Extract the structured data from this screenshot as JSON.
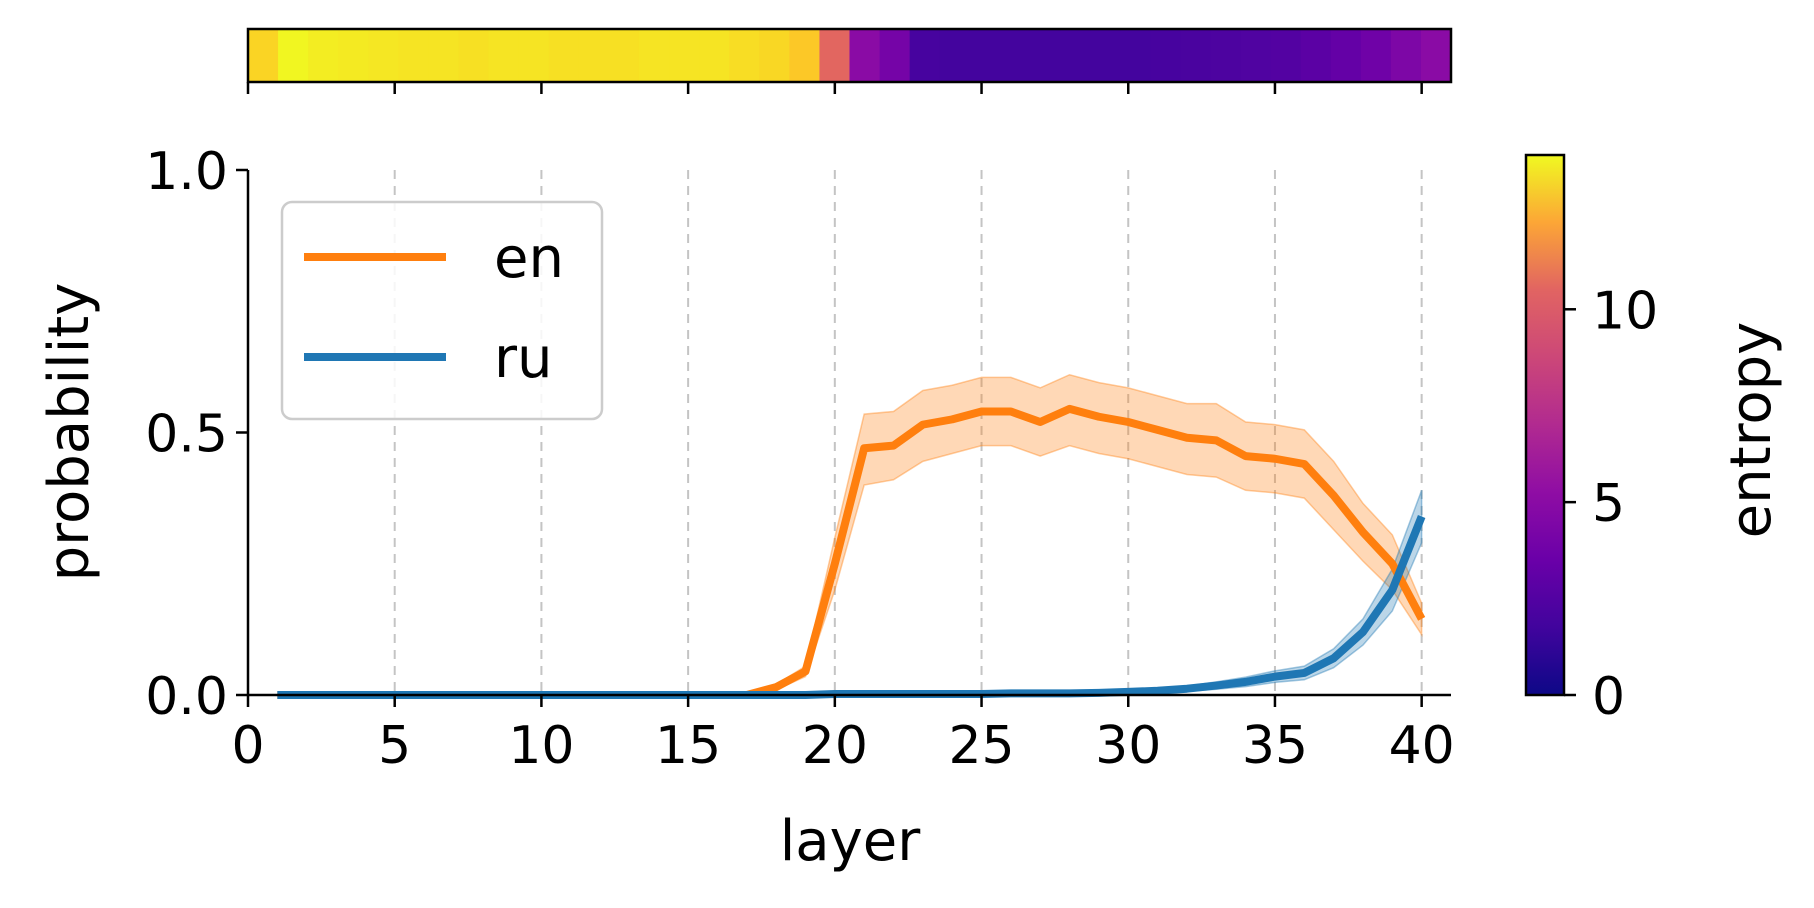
{
  "chart_data": {
    "type": "line",
    "title": "",
    "xlabel": "layer",
    "ylabel": "probability",
    "xlim": [
      0,
      41
    ],
    "ylim": [
      0,
      1
    ],
    "xticks": [
      0,
      5,
      10,
      15,
      20,
      25,
      30,
      35,
      40
    ],
    "xtick_labels": [
      "0",
      "5",
      "10",
      "15",
      "20",
      "25",
      "30",
      "35",
      "40"
    ],
    "yticks": [
      0,
      0.5,
      1
    ],
    "ytick_labels": [
      "0.0",
      "0.5",
      "1.0"
    ],
    "grid": "vertical dashed at x ticks",
    "legend_placement": "upper-left",
    "x": [
      1,
      2,
      3,
      4,
      5,
      6,
      7,
      8,
      9,
      10,
      11,
      12,
      13,
      14,
      15,
      16,
      17,
      18,
      19,
      20,
      21,
      22,
      23,
      24,
      25,
      26,
      27,
      28,
      29,
      30,
      31,
      32,
      33,
      34,
      35,
      36,
      37,
      38,
      39,
      40
    ],
    "series": [
      {
        "name": "en",
        "color": "#ff7f0e",
        "values": [
          0,
          0,
          0,
          0,
          0,
          0,
          0,
          0,
          0,
          0,
          0,
          0,
          0,
          0,
          0,
          0,
          0,
          0.015,
          0.045,
          0.25,
          0.47,
          0.475,
          0.515,
          0.525,
          0.54,
          0.54,
          0.52,
          0.545,
          0.53,
          0.52,
          0.505,
          0.49,
          0.485,
          0.455,
          0.45,
          0.44,
          0.38,
          0.31,
          0.25,
          0.145
        ],
        "lower": [
          0,
          0,
          0,
          0,
          0,
          0,
          0,
          0,
          0,
          0,
          0,
          0,
          0,
          0,
          0,
          0,
          0,
          0.01,
          0.035,
          0.2,
          0.4,
          0.41,
          0.445,
          0.46,
          0.475,
          0.475,
          0.455,
          0.475,
          0.46,
          0.45,
          0.435,
          0.42,
          0.415,
          0.39,
          0.385,
          0.375,
          0.315,
          0.255,
          0.2,
          0.115
        ],
        "upper": [
          0,
          0,
          0,
          0,
          0,
          0,
          0,
          0,
          0,
          0,
          0,
          0,
          0,
          0,
          0,
          0,
          0,
          0.02,
          0.055,
          0.3,
          0.535,
          0.54,
          0.58,
          0.59,
          0.605,
          0.605,
          0.585,
          0.61,
          0.595,
          0.585,
          0.57,
          0.555,
          0.555,
          0.52,
          0.515,
          0.505,
          0.445,
          0.365,
          0.305,
          0.175
        ]
      },
      {
        "name": "ru",
        "color": "#1f77b4",
        "values": [
          0,
          0,
          0,
          0,
          0,
          0,
          0,
          0,
          0,
          0,
          0,
          0,
          0,
          0,
          0,
          0,
          0,
          0,
          0,
          0.002,
          0.002,
          0.002,
          0.002,
          0.002,
          0.002,
          0.003,
          0.003,
          0.003,
          0.004,
          0.006,
          0.008,
          0.012,
          0.018,
          0.025,
          0.035,
          0.042,
          0.07,
          0.12,
          0.2,
          0.34
        ],
        "lower": [
          0,
          0,
          0,
          0,
          0,
          0,
          0,
          0,
          0,
          0,
          0,
          0,
          0,
          0,
          0,
          0,
          0,
          0,
          0,
          0.001,
          0.001,
          0.001,
          0.001,
          0.001,
          0.001,
          0.002,
          0.002,
          0.002,
          0.002,
          0.004,
          0.005,
          0.007,
          0.011,
          0.016,
          0.024,
          0.029,
          0.052,
          0.095,
          0.16,
          0.29
        ],
        "upper": [
          0,
          0,
          0,
          0,
          0,
          0,
          0,
          0,
          0,
          0,
          0,
          0,
          0,
          0,
          0,
          0,
          0,
          0,
          0,
          0.003,
          0.003,
          0.003,
          0.003,
          0.003,
          0.003,
          0.004,
          0.004,
          0.004,
          0.006,
          0.008,
          0.011,
          0.017,
          0.025,
          0.034,
          0.046,
          0.055,
          0.088,
          0.145,
          0.24,
          0.39
        ]
      }
    ],
    "entropy_strip": {
      "colormap": "plasma",
      "values": [
        12.8,
        13.9,
        13.6,
        13.5,
        13.4,
        13.3,
        13.3,
        13.2,
        13.3,
        13.3,
        13.2,
        13.2,
        13.2,
        13.3,
        13.3,
        13.3,
        13.1,
        12.9,
        12.4,
        8.5,
        4.0,
        3.2,
        1.6,
        1.5,
        1.5,
        1.5,
        1.5,
        1.5,
        1.5,
        1.5,
        1.6,
        1.7,
        1.8,
        1.9,
        2.0,
        2.3,
        2.6,
        3.0,
        3.5,
        4.0
      ]
    },
    "colorbar": {
      "label": "entropy",
      "min": 0,
      "max": 14,
      "ticks": [
        0,
        5,
        10
      ],
      "tick_labels": [
        "0",
        "5",
        "10"
      ]
    }
  }
}
